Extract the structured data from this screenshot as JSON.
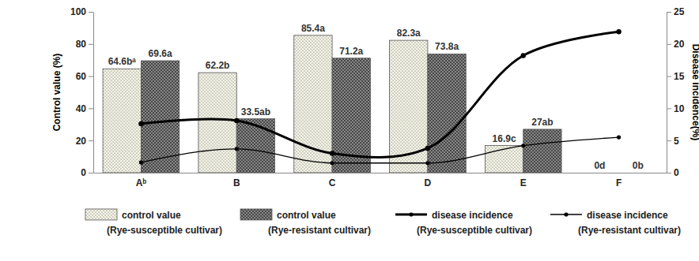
{
  "chart_data": {
    "type": "bar",
    "categories": [
      "Aᵇ",
      "B",
      "C",
      "D",
      "E",
      "F"
    ],
    "ylabel": "Control value (%)",
    "y2label": "Disease incidence(%)",
    "ylim": [
      0,
      100
    ],
    "yticks": [
      0,
      20,
      40,
      60,
      80,
      100
    ],
    "y2lim": [
      0,
      25
    ],
    "y2ticks": [
      0,
      5,
      10,
      15,
      20,
      25
    ],
    "data_labels": true,
    "legend": "bottom",
    "series": [
      {
        "name": "control value\n(Rye-susceptible cultivar)",
        "type": "bar",
        "color": "#f4f4e6",
        "values": [
          64.6,
          62.2,
          85.4,
          82.3,
          16.9,
          0
        ],
        "value_labels": [
          "64.6bᵃ",
          "62.2b",
          "85.4a",
          "82.3a",
          "16.9c",
          "0d"
        ]
      },
      {
        "name": "control value\n(Rye-resistant cultivar)",
        "type": "bar",
        "color": "#8a8a8a",
        "values": [
          69.6,
          33.5,
          71.2,
          73.8,
          27,
          0
        ],
        "value_labels": [
          "69.6a",
          "33.5ab",
          "71.2a",
          "73.8a",
          "27ab",
          "0b"
        ]
      },
      {
        "name": "disease incidence\n(Rye-susceptible cultivar)",
        "type": "line",
        "axis": "y2",
        "color": "#000000",
        "marker": "circle",
        "line_style": "solid",
        "values": [
          7.6,
          8.1,
          3.0,
          3.8,
          18.2,
          21.9
        ]
      },
      {
        "name": "disease incidence\n(Rye-resistant cultivar)",
        "type": "line",
        "axis": "y2",
        "color": "#000000",
        "marker": "circle",
        "line_style": "solid",
        "values": [
          1.6,
          3.7,
          1.5,
          1.5,
          4.2,
          5.5
        ]
      }
    ]
  }
}
